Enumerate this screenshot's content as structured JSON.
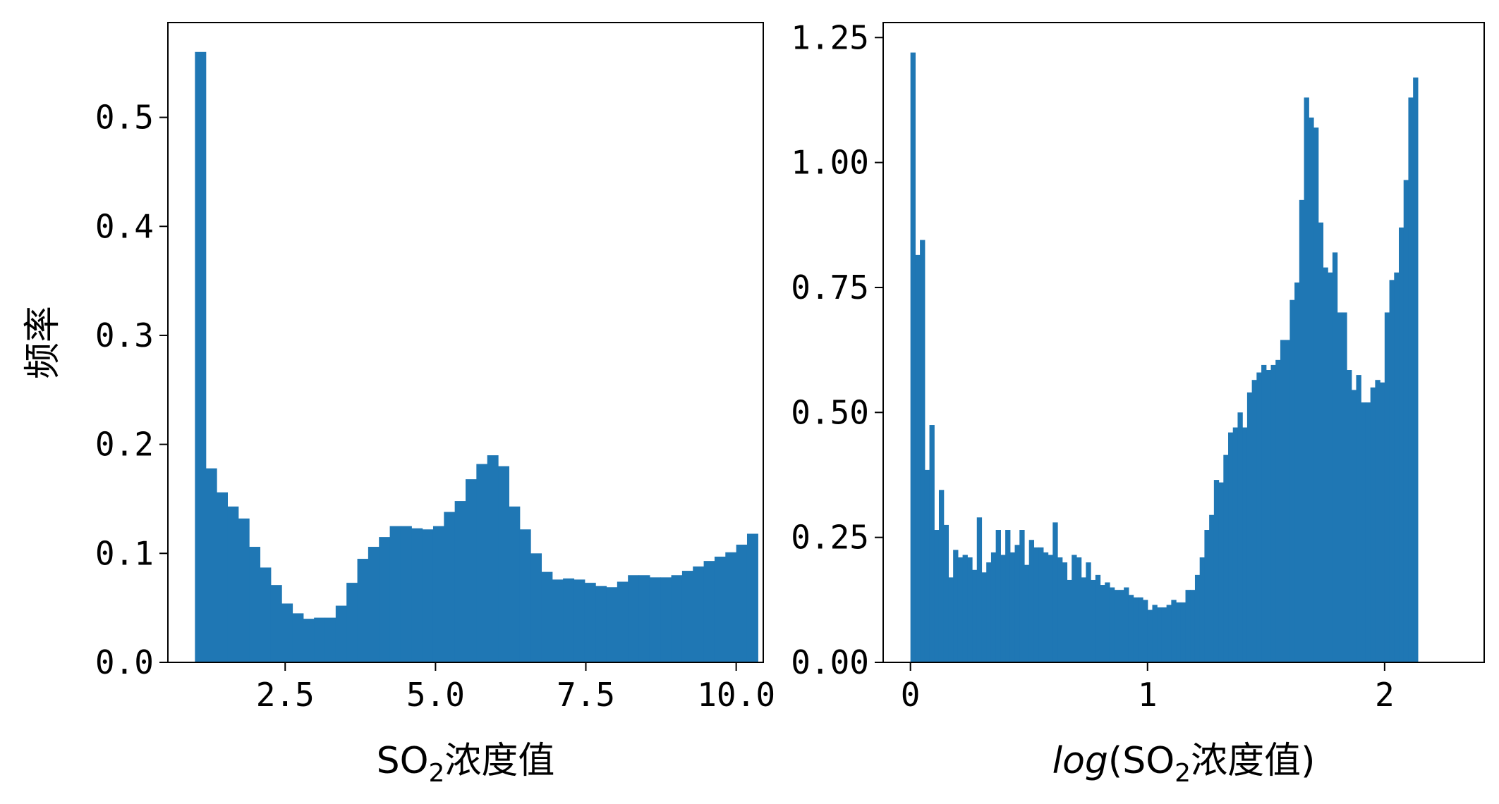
{
  "chart_data": [
    {
      "type": "bar",
      "subtype": "histogram",
      "xlabel": "SO₂浓度值",
      "xlabel_parts": [
        "SO",
        "2",
        "浓度值"
      ],
      "ylabel": "频率",
      "xlim": [
        0.55,
        10.45
      ],
      "ylim": [
        0,
        0.587
      ],
      "xticks": [
        2.5,
        5.0,
        7.5,
        10.0
      ],
      "xtick_labels": [
        "2.5",
        "5.0",
        "7.5",
        "10.0"
      ],
      "yticks": [
        0,
        0.1,
        0.2,
        0.3,
        0.4,
        0.5
      ],
      "ytick_labels": [
        "0.0",
        "0.1",
        "0.2",
        "0.3",
        "0.4",
        "0.5"
      ],
      "grid": false,
      "color": "#1f77b4",
      "bin_start": 1.0,
      "bin_width": 0.18,
      "values": [
        0.56,
        0.178,
        0.156,
        0.143,
        0.132,
        0.106,
        0.087,
        0.071,
        0.054,
        0.045,
        0.04,
        0.041,
        0.041,
        0.052,
        0.073,
        0.095,
        0.106,
        0.115,
        0.125,
        0.125,
        0.123,
        0.122,
        0.125,
        0.138,
        0.148,
        0.168,
        0.182,
        0.19,
        0.18,
        0.143,
        0.122,
        0.1,
        0.083,
        0.076,
        0.077,
        0.076,
        0.073,
        0.07,
        0.069,
        0.074,
        0.08,
        0.08,
        0.078,
        0.078,
        0.08,
        0.084,
        0.088,
        0.093,
        0.097,
        0.101,
        0.108,
        0.118
      ]
    },
    {
      "type": "bar",
      "subtype": "histogram",
      "xlabel": "log(SO₂浓度值)",
      "xlabel_parts": [
        "log",
        "(SO",
        "2",
        "浓度值)"
      ],
      "xlim": [
        -0.115,
        2.42
      ],
      "ylim": [
        0,
        1.28
      ],
      "xticks": [
        0,
        1,
        2
      ],
      "xtick_labels": [
        "0",
        "1",
        "2"
      ],
      "yticks": [
        0,
        0.25,
        0.5,
        0.75,
        1.0,
        1.25
      ],
      "ytick_labels": [
        "0.00",
        "0.25",
        "0.50",
        "0.75",
        "1.00",
        "1.25"
      ],
      "grid": false,
      "color": "#1f77b4",
      "bin_start": 0.0,
      "bin_width": 0.02,
      "values": [
        1.22,
        0.815,
        0.845,
        0.385,
        0.475,
        0.265,
        0.345,
        0.275,
        0.17,
        0.225,
        0.21,
        0.215,
        0.21,
        0.185,
        0.29,
        0.18,
        0.2,
        0.22,
        0.265,
        0.215,
        0.265,
        0.22,
        0.235,
        0.265,
        0.195,
        0.245,
        0.23,
        0.23,
        0.22,
        0.215,
        0.28,
        0.21,
        0.2,
        0.165,
        0.215,
        0.21,
        0.17,
        0.2,
        0.165,
        0.175,
        0.155,
        0.16,
        0.15,
        0.145,
        0.145,
        0.15,
        0.135,
        0.13,
        0.13,
        0.125,
        0.105,
        0.115,
        0.11,
        0.11,
        0.115,
        0.125,
        0.12,
        0.12,
        0.145,
        0.145,
        0.175,
        0.21,
        0.265,
        0.295,
        0.365,
        0.36,
        0.415,
        0.46,
        0.47,
        0.5,
        0.47,
        0.54,
        0.565,
        0.58,
        0.595,
        0.585,
        0.595,
        0.605,
        0.645,
        0.645,
        0.725,
        0.76,
        0.925,
        1.13,
        1.09,
        1.07,
        0.88,
        0.79,
        0.78,
        0.82,
        0.7,
        0.7,
        0.585,
        0.545,
        0.575,
        0.52,
        0.52,
        0.55,
        0.565,
        0.56,
        0.7,
        0.765,
        0.78,
        0.87,
        0.965,
        1.13,
        1.17
      ]
    }
  ]
}
